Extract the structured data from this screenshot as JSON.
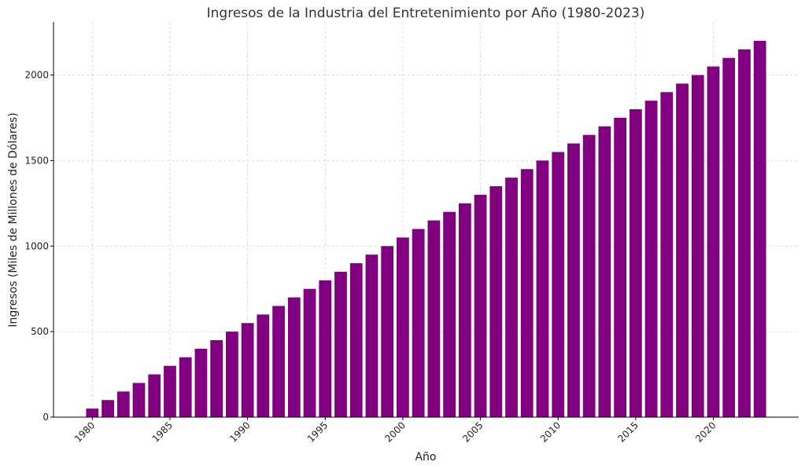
{
  "chart_data": {
    "type": "bar",
    "title": "Ingresos de la Industria del Entretenimiento por Año (1980-2023)",
    "xlabel": "Año",
    "ylabel": "Ingresos (Miles de Millones de Dólares)",
    "color": "#800080",
    "grid": true,
    "xlim": [
      1977.5,
      2025.5
    ],
    "ylim": [
      0,
      2310
    ],
    "x_ticks": [
      1980,
      1985,
      1990,
      1995,
      2000,
      2005,
      2010,
      2015,
      2020
    ],
    "x_tick_labels": [
      "1980",
      "1985",
      "1990",
      "1995",
      "2000",
      "2005",
      "2010",
      "2015",
      "2020"
    ],
    "y_ticks": [
      0,
      500,
      1000,
      1500,
      2000
    ],
    "y_tick_labels": [
      "0",
      "500",
      "1000",
      "1500",
      "2000"
    ],
    "categories": [
      1980,
      1981,
      1982,
      1983,
      1984,
      1985,
      1986,
      1987,
      1988,
      1989,
      1990,
      1991,
      1992,
      1993,
      1994,
      1995,
      1996,
      1997,
      1998,
      1999,
      2000,
      2001,
      2002,
      2003,
      2004,
      2005,
      2006,
      2007,
      2008,
      2009,
      2010,
      2011,
      2012,
      2013,
      2014,
      2015,
      2016,
      2017,
      2018,
      2019,
      2020,
      2021,
      2022,
      2023
    ],
    "values": [
      50,
      100,
      150,
      200,
      250,
      300,
      350,
      400,
      450,
      500,
      550,
      600,
      650,
      700,
      750,
      800,
      850,
      900,
      950,
      1000,
      1050,
      1100,
      1150,
      1200,
      1250,
      1300,
      1350,
      1400,
      1450,
      1500,
      1550,
      1600,
      1650,
      1700,
      1750,
      1800,
      1850,
      1900,
      1950,
      2000,
      2050,
      2100,
      2150,
      2200
    ]
  }
}
